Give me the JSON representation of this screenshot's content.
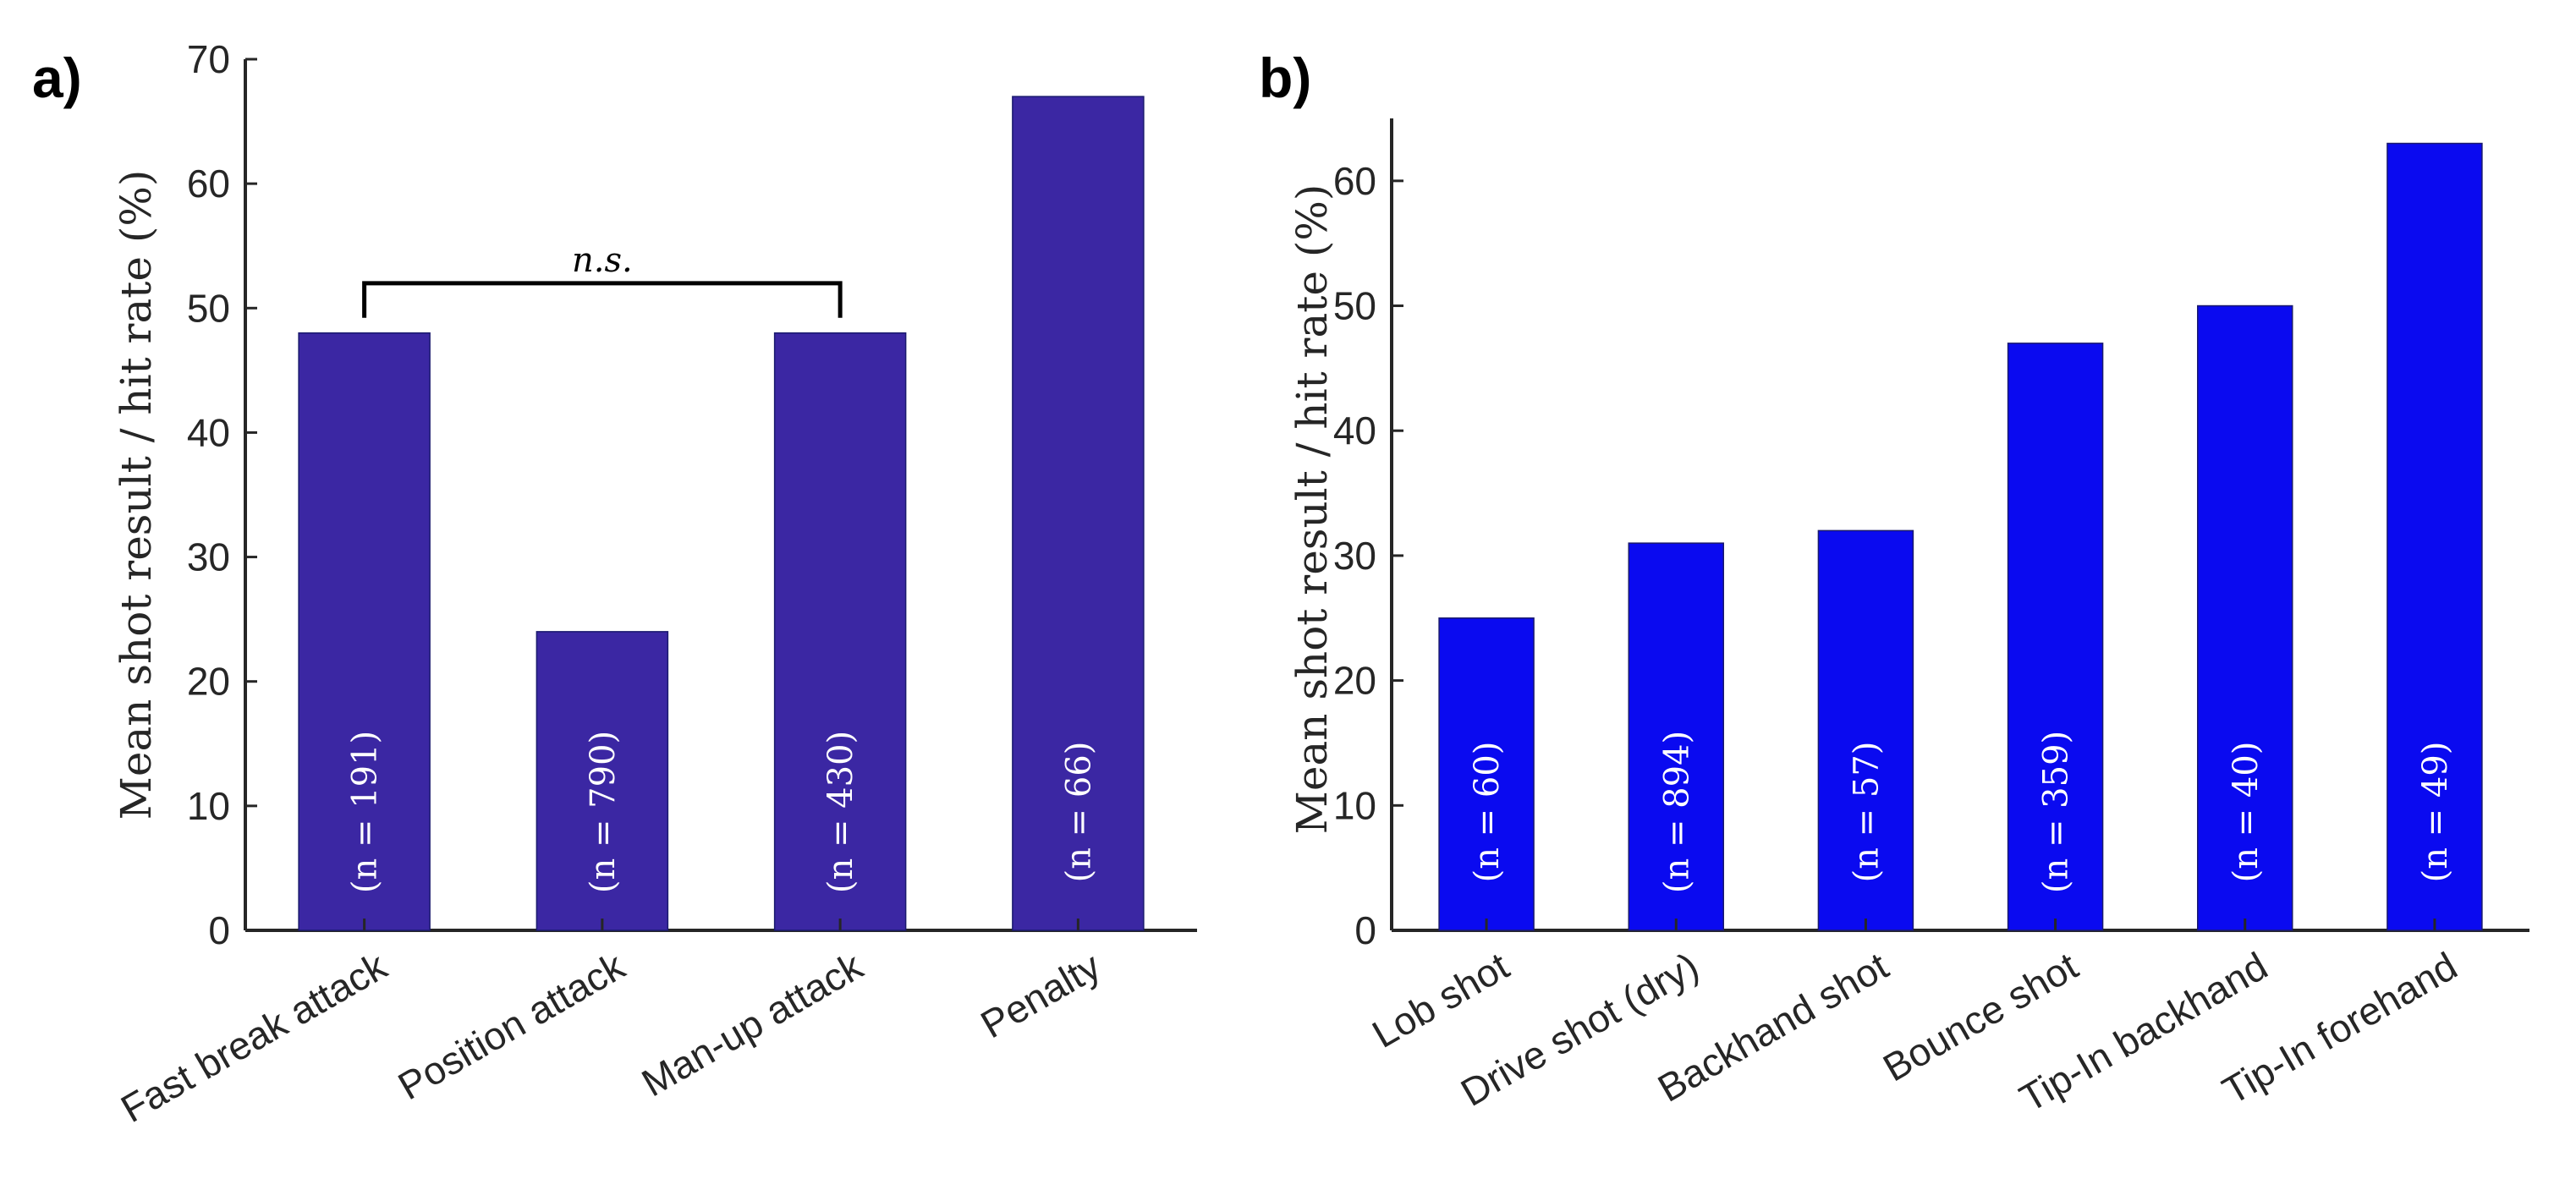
{
  "chart_data": [
    {
      "type": "bar",
      "panel_label": "a)",
      "categories": [
        "Fast break attack",
        "Position attack",
        "Man-up attack",
        "Penalty"
      ],
      "values": [
        48,
        24,
        48,
        67
      ],
      "n_labels": [
        "(n = 191)",
        "(n = 790)",
        "(n = 430)",
        "(n = 66)"
      ],
      "ylabel": "Mean shot result / hit rate (%)",
      "ylim": [
        0,
        70
      ],
      "yticks": [
        "0",
        "10",
        "20",
        "30",
        "40",
        "50",
        "60",
        "70"
      ],
      "bar_color": "#3b27a3",
      "annotation": {
        "text": "n.s.",
        "from_index": 0,
        "to_index": 2,
        "level": 52
      }
    },
    {
      "type": "bar",
      "panel_label": "b)",
      "categories": [
        "Lob shot",
        "Drive shot (dry)",
        "Backhand shot",
        "Bounce shot",
        "Tip-In backhand",
        "Tip-In forehand"
      ],
      "values": [
        25,
        31,
        32,
        47,
        50,
        63
      ],
      "n_labels": [
        "(n = 60)",
        "(n = 894)",
        "(n = 57)",
        "(n = 359)",
        "(n = 40)",
        "(n = 49)"
      ],
      "ylabel": "Mean shot result / hit rate (%)",
      "ylim": [
        0,
        65
      ],
      "yticks": [
        "0",
        "10",
        "20",
        "30",
        "40",
        "50",
        "60"
      ],
      "bar_color": "#0a0af0"
    }
  ]
}
